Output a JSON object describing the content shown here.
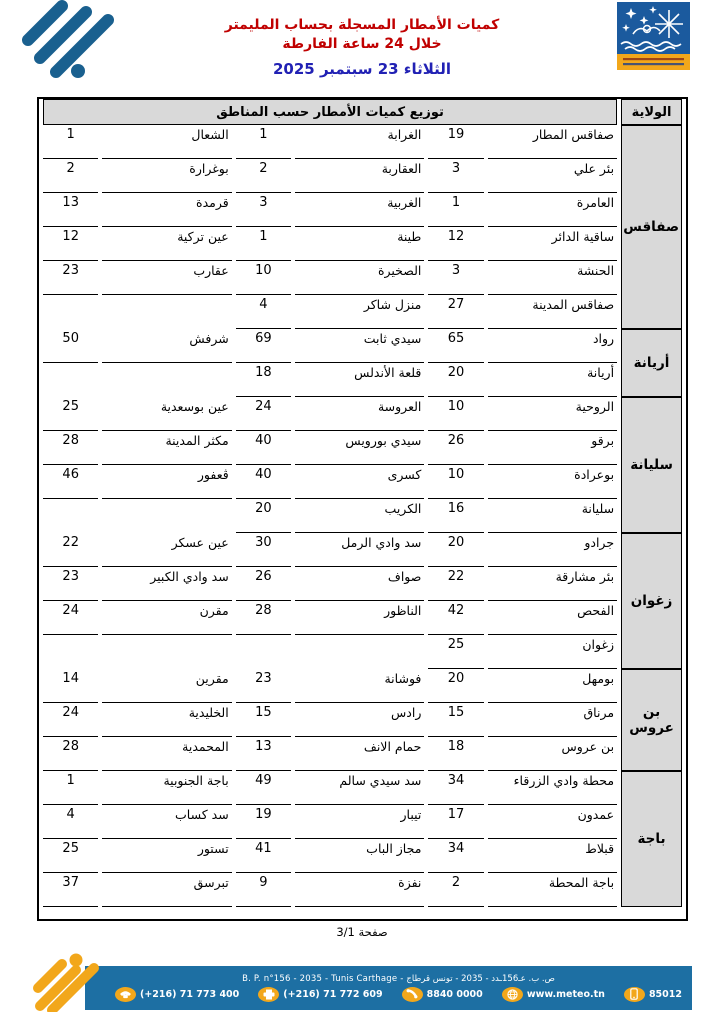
{
  "document": {
    "title_line1": "كميات الأمطار المسجلة بحساب المليمتر",
    "title_line2": "خلال 24 ساعة الفارطة",
    "date": "الثلاثاء 23 سبتمبر 2025",
    "page_label": "صفحة 3/1"
  },
  "table": {
    "main_header": "توزيع كميات الأمطار حسب المناطق",
    "wilaya_header": "الولاية",
    "groups": [
      {
        "wilaya": "صفاقس",
        "rows": [
          [
            [
              "صفاقس المطار",
              "19"
            ],
            [
              "الغرابة",
              "1"
            ],
            [
              "الشعال",
              "1"
            ]
          ],
          [
            [
              "بئر علي",
              "3"
            ],
            [
              "العقاربة",
              "2"
            ],
            [
              "بوغرارة",
              "2"
            ]
          ],
          [
            [
              "العامرة",
              "1"
            ],
            [
              "الغربية",
              "3"
            ],
            [
              "قرمدة",
              "13"
            ]
          ],
          [
            [
              "ساقية الدائر",
              "12"
            ],
            [
              "طينة",
              "1"
            ],
            [
              "عين تركية",
              "12"
            ]
          ],
          [
            [
              "الحنشة",
              "3"
            ],
            [
              "الصخيرة",
              "10"
            ],
            [
              "عقارب",
              "23"
            ]
          ],
          [
            [
              "صفاقس المدينة",
              "27"
            ],
            [
              "منزل شاكر",
              "4"
            ],
            [
              "",
              ""
            ]
          ]
        ]
      },
      {
        "wilaya": "أريانة",
        "rows": [
          [
            [
              "رواد",
              "65"
            ],
            [
              "سيدي ثابت",
              "69"
            ],
            [
              "شرفش",
              "50"
            ]
          ],
          [
            [
              "أريانة",
              "20"
            ],
            [
              "قلعة الأندلس",
              "18"
            ],
            [
              "",
              ""
            ]
          ]
        ]
      },
      {
        "wilaya": "سليانة",
        "rows": [
          [
            [
              "الروحية",
              "10"
            ],
            [
              "العروسة",
              "24"
            ],
            [
              "عين بوسعدية",
              "25"
            ]
          ],
          [
            [
              "برقو",
              "26"
            ],
            [
              "سيدي بورويس",
              "40"
            ],
            [
              "مكثر المدينة",
              "28"
            ]
          ],
          [
            [
              "بوعرادة",
              "10"
            ],
            [
              "كسرى",
              "40"
            ],
            [
              "ڨعفور",
              "46"
            ]
          ],
          [
            [
              "سليانة",
              "16"
            ],
            [
              "الكريب",
              "20"
            ],
            [
              "",
              ""
            ]
          ]
        ]
      },
      {
        "wilaya": "زغوان",
        "rows": [
          [
            [
              "جرادو",
              "20"
            ],
            [
              "سد وادي الرمل",
              "30"
            ],
            [
              "عين عسكر",
              "22"
            ]
          ],
          [
            [
              "بئر مشارقة",
              "22"
            ],
            [
              "صواف",
              "26"
            ],
            [
              "سد وادي الكبير",
              "23"
            ]
          ],
          [
            [
              "الفحص",
              "42"
            ],
            [
              "الناظور",
              "28"
            ],
            [
              "مقرن",
              "24"
            ]
          ],
          [
            [
              "زغوان",
              "25"
            ],
            [
              "",
              ""
            ],
            [
              "",
              ""
            ]
          ]
        ]
      },
      {
        "wilaya": "بن عروس",
        "rows": [
          [
            [
              "بومهل",
              "20"
            ],
            [
              "فوشانة",
              "23"
            ],
            [
              "مقرين",
              "14"
            ]
          ],
          [
            [
              "مرناق",
              "15"
            ],
            [
              "رادس",
              "15"
            ],
            [
              "الخليدية",
              "24"
            ]
          ],
          [
            [
              "بن عروس",
              "18"
            ],
            [
              "حمام الانف",
              "13"
            ],
            [
              "المحمدية",
              "28"
            ]
          ]
        ]
      },
      {
        "wilaya": "باجة",
        "rows": [
          [
            [
              "محطة وادي الزرقاء",
              "34"
            ],
            [
              "سد سيدي سالم",
              "49"
            ],
            [
              "باجة الجنوبية",
              "1"
            ]
          ],
          [
            [
              "عمدون",
              "17"
            ],
            [
              "تيبار",
              "19"
            ],
            [
              "سد كساب",
              "4"
            ]
          ],
          [
            [
              "قبلاط",
              "34"
            ],
            [
              "مجاز الباب",
              "41"
            ],
            [
              "تستور",
              "25"
            ]
          ],
          [
            [
              "باجة المحطة",
              "2"
            ],
            [
              "نفزة",
              "9"
            ],
            [
              "تبرسق",
              "37"
            ]
          ]
        ]
      }
    ]
  },
  "footer": {
    "address": "B. P. n°156 - 2035 - Tunis Carthage - ص. ب. عـ156ـدد - 2035 - تونس قرطاج",
    "contacts": [
      {
        "icon": "phone-icon",
        "label": "(+216) 71 773 400"
      },
      {
        "icon": "fax-icon",
        "label": "(+216) 71 772 609"
      },
      {
        "icon": "callcenter-icon",
        "label": "8840 0000"
      },
      {
        "icon": "globe-icon",
        "label": "www.meteo.tn"
      },
      {
        "icon": "sms-icon",
        "label": "85012"
      }
    ]
  },
  "colors": {
    "title-red": "#c00000",
    "date-blue": "#2121b4",
    "table-gray": "#d9d9d9",
    "footer-blue": "#1d6fa3",
    "accent-orange": "#f2a71b",
    "logo-blue": "#1a608f"
  }
}
